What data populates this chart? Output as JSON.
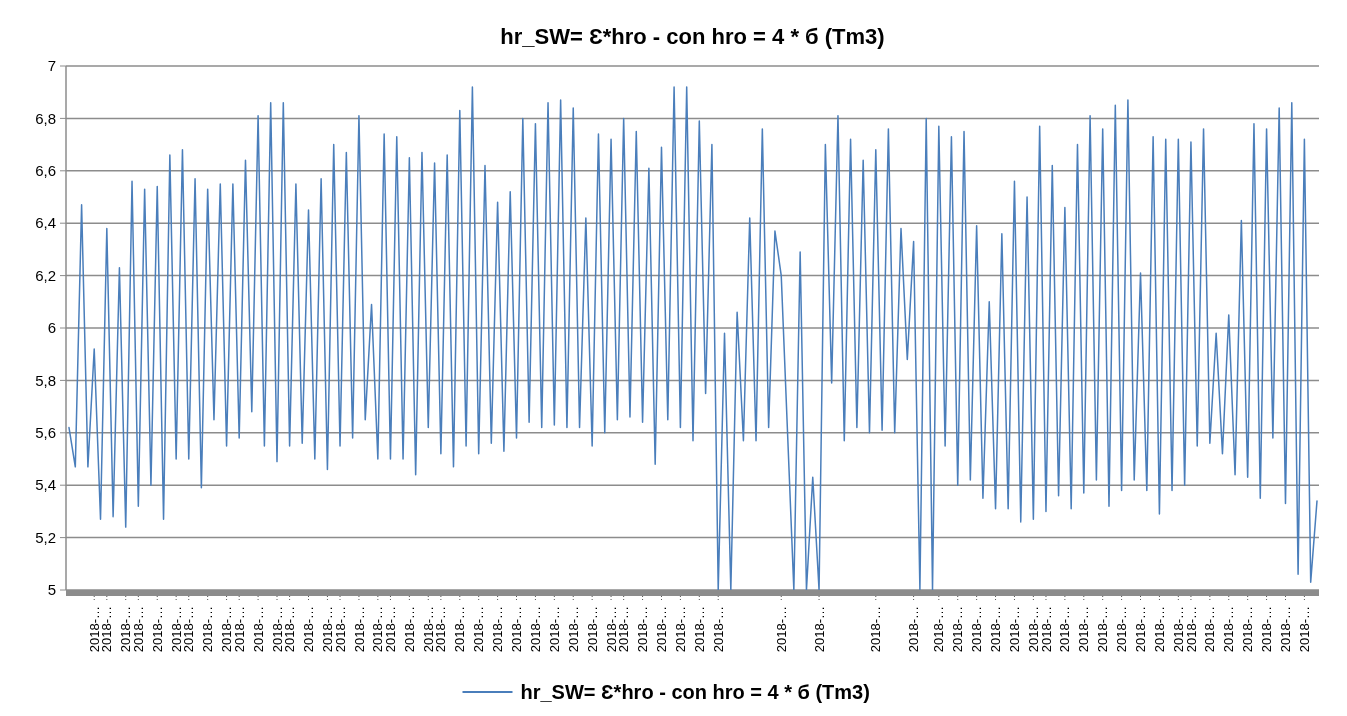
{
  "chart_data": {
    "type": "line",
    "title": "hr_SW= Ɛ*hro - con  hro = 4 * б (Tm3)",
    "categories": [
      null,
      null,
      null,
      null,
      "2018-…",
      null,
      "2018-…",
      null,
      null,
      "2018-…",
      null,
      "2018-…",
      null,
      null,
      "2018-…",
      null,
      null,
      "2018-…",
      null,
      "2018-…",
      null,
      null,
      "2018-…",
      null,
      null,
      "2018-…",
      null,
      "2018-…",
      null,
      null,
      "2018-…",
      null,
      null,
      "2018-…",
      null,
      "2018-…",
      null,
      null,
      "2018-…",
      null,
      null,
      "2018-…",
      null,
      "2018-…",
      null,
      null,
      "2018-…",
      null,
      null,
      "2018-…",
      null,
      "2018-…",
      null,
      null,
      "2018-…",
      null,
      null,
      "2018-…",
      null,
      "2018-…",
      null,
      null,
      "2018-…",
      null,
      null,
      "2018-…",
      null,
      null,
      "2018-…",
      null,
      null,
      "2018-…",
      null,
      null,
      "2018-…",
      null,
      null,
      "2018-…",
      null,
      null,
      "2018-…",
      null,
      null,
      "2018-…",
      null,
      null,
      "2018-…",
      null,
      "2018-…",
      null,
      null,
      "2018-…",
      null,
      null,
      "2018-…",
      null,
      null,
      "2018-…",
      null,
      null,
      "2018-…",
      null,
      null,
      "2018-…",
      null,
      null,
      null,
      null,
      null,
      null,
      null,
      null,
      null,
      "2018-…",
      null,
      null,
      null,
      null,
      null,
      "2018-…",
      null,
      null,
      null,
      null,
      null,
      null,
      null,
      null,
      "2018-…",
      null,
      null,
      null,
      null,
      null,
      "2018-…",
      null,
      null,
      null,
      "2018-…",
      null,
      null,
      "2018-…",
      null,
      null,
      "2018-…",
      null,
      null,
      "2018-…",
      null,
      null,
      "2018-…",
      null,
      null,
      "2018-…",
      null,
      "2018-…",
      null,
      null,
      "2018-…",
      null,
      null,
      "2018-…",
      null,
      null,
      "2018-…",
      null,
      null,
      "2018-…",
      null,
      null,
      "2018-…",
      null,
      null,
      "2018-…",
      null,
      null,
      "2018-…",
      null,
      "2018-…",
      null,
      null,
      "2018-…",
      null,
      null,
      "2018-…",
      null,
      null,
      "2018-…",
      null,
      null,
      "2018-…",
      null,
      null,
      "2018-…",
      null,
      null,
      "2018-…",
      null,
      null
    ],
    "series": [
      {
        "name": "hr_SW= Ɛ*hro - con  hro = 4 * б (Tm3)",
        "color": "#4a7ebb",
        "values": [
          5.62,
          5.47,
          6.47,
          5.47,
          5.92,
          5.27,
          6.38,
          5.28,
          6.23,
          5.24,
          6.56,
          5.32,
          6.53,
          5.4,
          6.54,
          5.27,
          6.66,
          5.5,
          6.68,
          5.5,
          6.57,
          5.39,
          6.53,
          5.65,
          6.55,
          5.55,
          6.55,
          5.58,
          6.64,
          5.68,
          6.81,
          5.55,
          6.86,
          5.49,
          6.86,
          5.55,
          6.55,
          5.56,
          6.45,
          5.5,
          6.57,
          5.46,
          6.7,
          5.55,
          6.67,
          5.58,
          6.81,
          5.65,
          6.09,
          5.5,
          6.74,
          5.5,
          6.73,
          5.5,
          6.65,
          5.44,
          6.67,
          5.62,
          6.63,
          5.52,
          6.66,
          5.47,
          6.83,
          5.55,
          6.92,
          5.52,
          6.62,
          5.56,
          6.48,
          5.53,
          6.52,
          5.58,
          6.8,
          5.64,
          6.78,
          5.62,
          6.86,
          5.63,
          6.87,
          5.62,
          6.84,
          5.62,
          6.42,
          5.55,
          6.74,
          5.6,
          6.72,
          5.65,
          6.8,
          5.66,
          6.75,
          5.64,
          6.61,
          5.48,
          6.69,
          5.65,
          6.92,
          5.62,
          6.92,
          5.57,
          6.79,
          5.75,
          6.7,
          5.0,
          5.98,
          5.0,
          6.06,
          5.57,
          6.42,
          5.57,
          6.76,
          5.62,
          6.37,
          6.2,
          5.6,
          5.0,
          6.29,
          5.0,
          5.43,
          5.0,
          6.7,
          5.79,
          6.81,
          5.57,
          6.72,
          5.62,
          6.64,
          5.6,
          6.68,
          5.61,
          6.76,
          5.6,
          6.38,
          5.88,
          6.33,
          5.0,
          6.8,
          5.0,
          6.77,
          5.55,
          6.73,
          5.4,
          6.75,
          5.42,
          6.39,
          5.35,
          6.1,
          5.31,
          6.36,
          5.31,
          6.56,
          5.26,
          6.5,
          5.27,
          6.77,
          5.3,
          6.62,
          5.36,
          6.46,
          5.31,
          6.7,
          5.37,
          6.81,
          5.42,
          6.76,
          5.32,
          6.85,
          5.38,
          6.87,
          5.42,
          6.21,
          5.38,
          6.73,
          5.29,
          6.72,
          5.38,
          6.72,
          5.4,
          6.71,
          5.55,
          6.76,
          5.56,
          5.98,
          5.52,
          6.05,
          5.44,
          6.41,
          5.43,
          6.78,
          5.35,
          6.76,
          5.58,
          6.84,
          5.33,
          6.86,
          5.06,
          6.72,
          5.03,
          5.34
        ]
      }
    ],
    "ylim": [
      5,
      7
    ],
    "yticks": [
      5,
      {
        "value": 5.2,
        "label": "5,2"
      },
      {
        "value": 5.4,
        "label": "5,4"
      },
      {
        "value": 5.6,
        "label": "5,6"
      },
      {
        "value": 5.8,
        "label": "5,8"
      },
      6,
      {
        "value": 6.2,
        "label": "6,2"
      },
      {
        "value": 6.4,
        "label": "6,4"
      },
      {
        "value": 6.6,
        "label": "6,6"
      },
      {
        "value": 6.8,
        "label": "6,8"
      },
      7
    ],
    "grid": "y",
    "legend": "bottom",
    "marker": "none",
    "line_style": "solid"
  }
}
